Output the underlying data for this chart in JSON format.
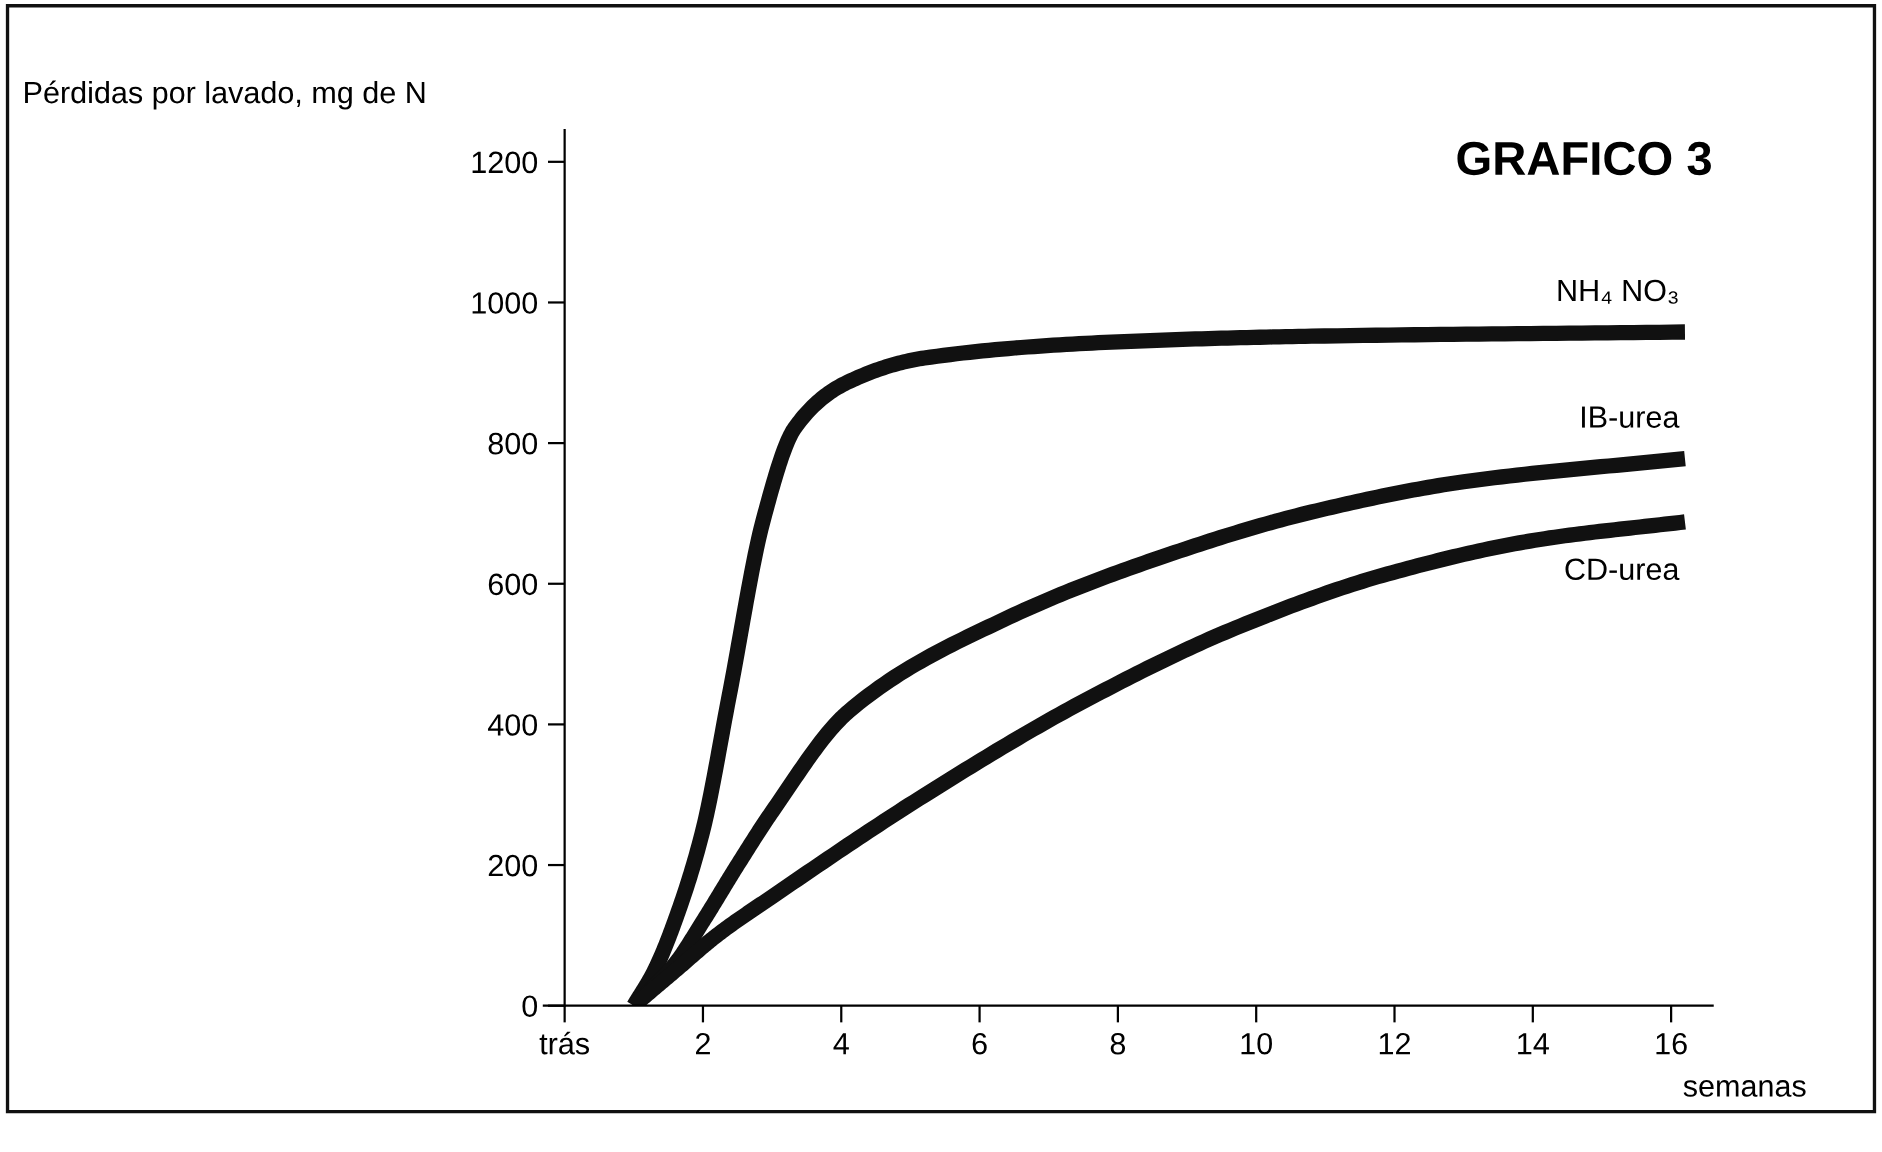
{
  "chart_data": {
    "type": "line",
    "title": "GRAFICO 3",
    "ylabel": "Pérdidas por lavado, mg de N",
    "xlabel": "semanas",
    "xlim": [
      -0.3,
      16.6
    ],
    "ylim": [
      0,
      1245
    ],
    "xticks": [
      {
        "value": 0,
        "label": "trás"
      },
      2,
      4,
      6,
      8,
      10,
      12,
      14,
      16
    ],
    "yticks": [
      0,
      200,
      400,
      600,
      800,
      1000,
      1200
    ],
    "grid": false,
    "legend": false,
    "marker": "none",
    "line_style": "solid",
    "series": [
      {
        "name": "NH₄ NO₃",
        "color": "#111111",
        "x": [
          1.0,
          1.3,
          1.6,
          2.0,
          2.38,
          2.87,
          3.33,
          4.1,
          5.2,
          8.0,
          10.8,
          16.2
        ],
        "values": [
          0,
          50,
          122,
          250,
          441,
          690,
          822,
          887,
          921,
          944,
          952,
          958
        ]
      },
      {
        "name": "IB-urea",
        "color": "#111111",
        "x": [
          1.0,
          1.6,
          2.0,
          2.5,
          3.0,
          4.1,
          6.35,
          8.6,
          10.8,
          13.0,
          16.2
        ],
        "values": [
          0,
          60,
          120,
          200,
          276,
          418,
          549,
          637,
          702,
          745,
          778
        ]
      },
      {
        "name": "CD-urea",
        "color": "#111111",
        "x": [
          1.0,
          1.6,
          2.2,
          3.0,
          5.2,
          7.45,
          9.7,
          11.9,
          14.1,
          16.2
        ],
        "values": [
          0,
          50,
          100,
          155,
          299,
          430,
          537,
          614,
          663,
          688
        ]
      }
    ]
  }
}
